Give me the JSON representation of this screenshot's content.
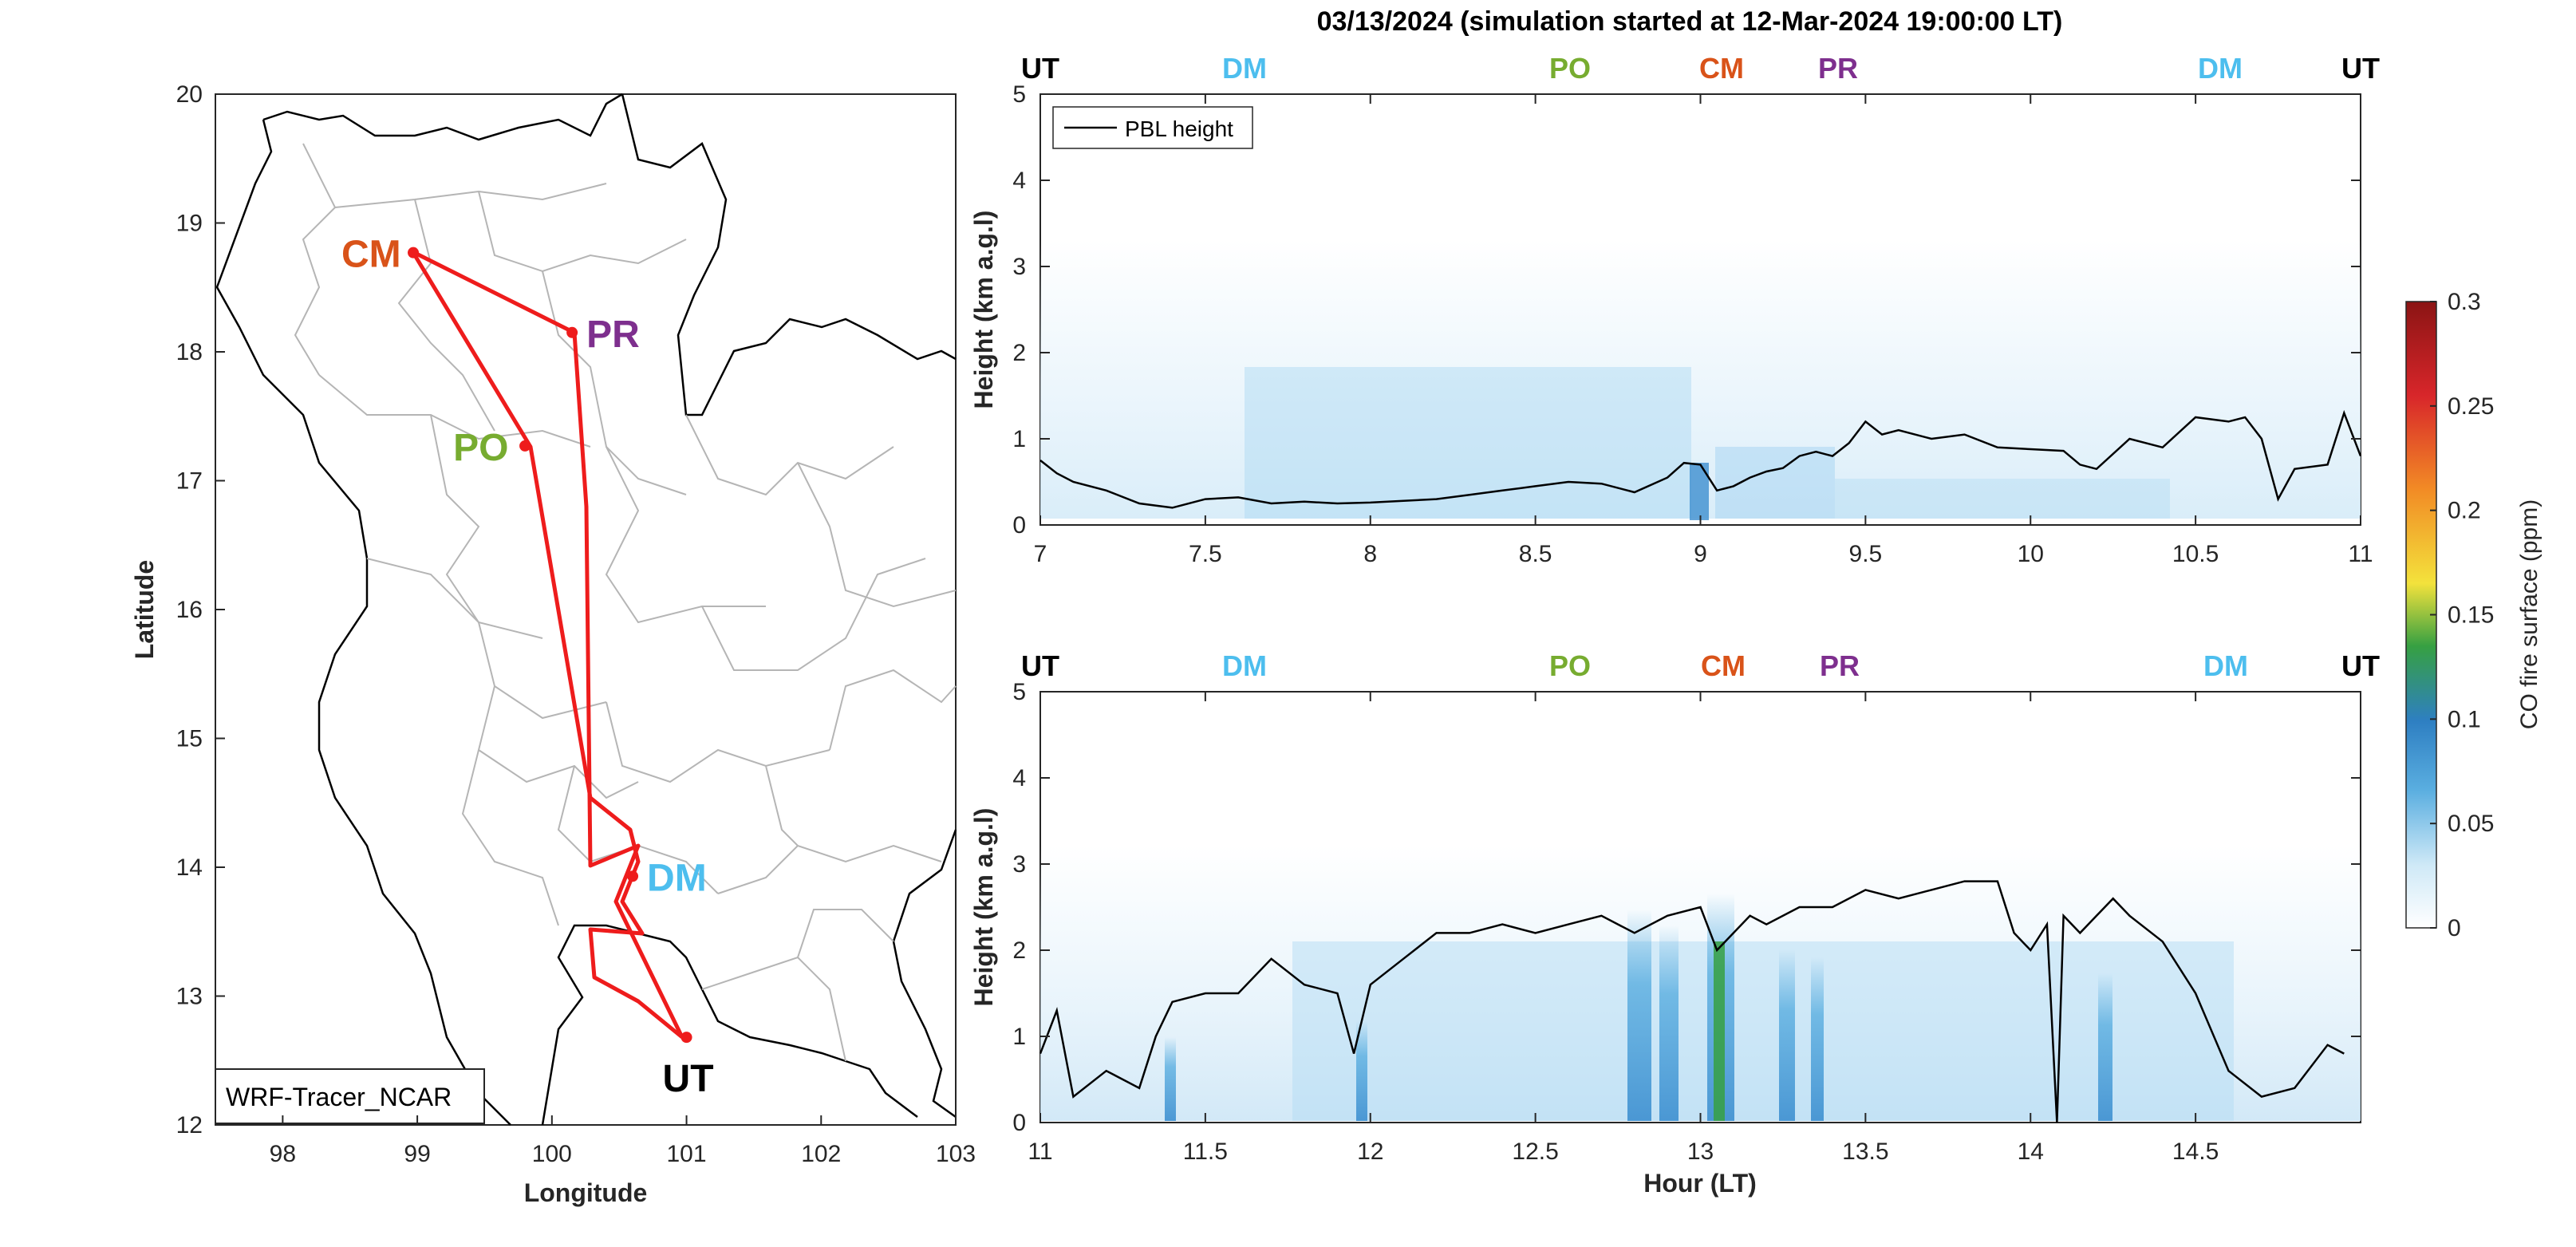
{
  "title": "03/13/2024 (simulation started at 12-Mar-2024 19:00:00 LT)",
  "map": {
    "xlabel": "Longitude",
    "ylabel": "Latitude",
    "xticks": [
      "98",
      "99",
      "100",
      "101",
      "102",
      "103"
    ],
    "yticks": [
      "12",
      "13",
      "14",
      "15",
      "16",
      "17",
      "18",
      "19",
      "20"
    ],
    "xlim": [
      97.5,
      103
    ],
    "ylim": [
      12,
      20
    ],
    "model_label": "WRF-Tracer_NCAR",
    "route_color": "#ee1c1c",
    "sites": [
      {
        "label": "CM",
        "lon": 98.97,
        "lat": 18.77,
        "color": "#d95319"
      },
      {
        "label": "PR",
        "lon": 100.15,
        "lat": 18.15,
        "color": "#7e2f8e"
      },
      {
        "label": "PO",
        "lon": 99.8,
        "lat": 17.27,
        "color": "#77ac30"
      },
      {
        "label": "DM",
        "lon": 100.6,
        "lat": 13.93,
        "color": "#4dbeee"
      },
      {
        "label": "UT",
        "lon": 101.0,
        "lat": 12.68,
        "color": "#000000"
      }
    ]
  },
  "site_marks": {
    "top": [
      {
        "label": "UT",
        "color": "#000000"
      },
      {
        "label": "DM",
        "color": "#4dbeee"
      },
      {
        "label": "PO",
        "color": "#77ac30"
      },
      {
        "label": "CM",
        "color": "#d95319"
      },
      {
        "label": "PR",
        "color": "#7e2f8e"
      },
      {
        "label": "DM",
        "color": "#4dbeee"
      },
      {
        "label": "UT",
        "color": "#000000"
      }
    ],
    "bottom": [
      {
        "label": "UT",
        "color": "#000000"
      },
      {
        "label": "DM",
        "color": "#4dbeee"
      },
      {
        "label": "PO",
        "color": "#77ac30"
      },
      {
        "label": "CM",
        "color": "#d95319"
      },
      {
        "label": "PR",
        "color": "#7e2f8e"
      },
      {
        "label": "DM",
        "color": "#4dbeee"
      },
      {
        "label": "UT",
        "color": "#000000"
      }
    ]
  },
  "colorbar": {
    "label": "CO fire surface (ppm)",
    "ticks": [
      "0",
      "0.05",
      "0.1",
      "0.15",
      "0.2",
      "0.25",
      "0.3"
    ],
    "range": [
      0,
      0.3
    ],
    "colors": [
      "#ffffff",
      "#cfe9f7",
      "#5aaee0",
      "#2e7fc2",
      "#36a042",
      "#f3e23c",
      "#f28b25",
      "#d8262a",
      "#8b1414"
    ]
  },
  "chart_data": [
    {
      "type": "heatmap",
      "ylabel": "Height (km a.g.l)",
      "xlabel": "",
      "xlim": [
        7,
        11
      ],
      "ylim": [
        0,
        5
      ],
      "xticks": [
        "7",
        "7.5",
        "8",
        "8.5",
        "9",
        "9.5",
        "10",
        "10.5",
        "11"
      ],
      "yticks": [
        "0",
        "1",
        "2",
        "3",
        "4",
        "5"
      ],
      "legend": "PBL height",
      "legend_position": "top-left",
      "series": [
        {
          "name": "PBL height",
          "x": [
            7.0,
            7.05,
            7.1,
            7.2,
            7.3,
            7.4,
            7.5,
            7.6,
            7.7,
            7.8,
            7.9,
            8.0,
            8.1,
            8.2,
            8.3,
            8.4,
            8.5,
            8.6,
            8.7,
            8.8,
            8.9,
            8.95,
            9.0,
            9.05,
            9.1,
            9.15,
            9.2,
            9.25,
            9.3,
            9.35,
            9.4,
            9.45,
            9.5,
            9.55,
            9.6,
            9.7,
            9.8,
            9.9,
            10.0,
            10.1,
            10.15,
            10.2,
            10.3,
            10.4,
            10.5,
            10.6,
            10.65,
            10.7,
            10.75,
            10.8,
            10.9,
            10.95,
            11.0
          ],
          "values": [
            0.75,
            0.6,
            0.5,
            0.4,
            0.25,
            0.2,
            0.3,
            0.32,
            0.25,
            0.27,
            0.25,
            0.26,
            0.28,
            0.3,
            0.35,
            0.4,
            0.45,
            0.5,
            0.48,
            0.38,
            0.55,
            0.72,
            0.7,
            0.4,
            0.45,
            0.55,
            0.62,
            0.66,
            0.8,
            0.85,
            0.8,
            0.95,
            1.2,
            1.05,
            1.1,
            1.0,
            1.05,
            0.9,
            0.88,
            0.86,
            0.7,
            0.65,
            1.0,
            0.9,
            1.25,
            1.2,
            1.25,
            1.0,
            0.3,
            0.65,
            0.7,
            1.3,
            0.8
          ]
        }
      ]
    },
    {
      "type": "heatmap",
      "ylabel": "Height (km a.g.l)",
      "xlabel": "Hour (LT)",
      "xlim": [
        11,
        15
      ],
      "ylim": [
        0,
        5
      ],
      "xticks": [
        "11",
        "11.5",
        "12",
        "12.5",
        "13",
        "13.5",
        "14",
        "14.5"
      ],
      "yticks": [
        "0",
        "1",
        "2",
        "3",
        "4",
        "5"
      ],
      "series": [
        {
          "name": "PBL height",
          "x": [
            11.0,
            11.05,
            11.1,
            11.2,
            11.3,
            11.35,
            11.4,
            11.5,
            11.6,
            11.7,
            11.8,
            11.9,
            11.95,
            12.0,
            12.1,
            12.2,
            12.3,
            12.4,
            12.5,
            12.6,
            12.7,
            12.8,
            12.9,
            13.0,
            13.05,
            13.1,
            13.15,
            13.2,
            13.3,
            13.4,
            13.5,
            13.6,
            13.7,
            13.8,
            13.9,
            13.95,
            14.0,
            14.05,
            14.08,
            14.1,
            14.15,
            14.2,
            14.25,
            14.3,
            14.4,
            14.5,
            14.6,
            14.7,
            14.8,
            14.9,
            14.95
          ],
          "values": [
            0.8,
            1.3,
            0.3,
            0.6,
            0.4,
            1.0,
            1.4,
            1.5,
            1.5,
            1.9,
            1.6,
            1.5,
            0.8,
            1.6,
            1.9,
            2.2,
            2.2,
            2.3,
            2.2,
            2.3,
            2.4,
            2.2,
            2.4,
            2.5,
            2.0,
            2.2,
            2.4,
            2.3,
            2.5,
            2.5,
            2.7,
            2.6,
            2.7,
            2.8,
            2.8,
            2.2,
            2.0,
            2.3,
            0.0,
            2.4,
            2.2,
            2.4,
            2.6,
            2.4,
            2.1,
            1.5,
            0.6,
            0.3,
            0.4,
            0.9,
            0.8
          ]
        }
      ]
    }
  ]
}
